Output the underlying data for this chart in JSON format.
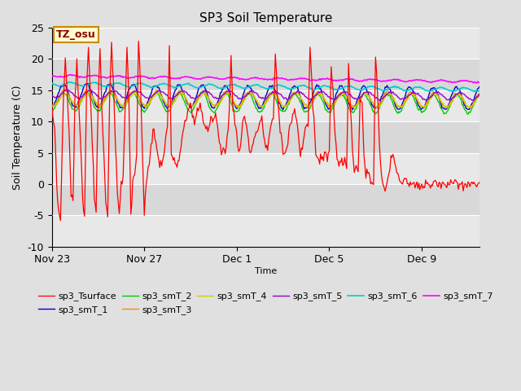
{
  "title": "SP3 Soil Temperature",
  "ylabel": "Soil Temperature (C)",
  "xlabel": "Time",
  "annotation": "TZ_osu",
  "ylim": [
    -10,
    25
  ],
  "xlim_days": 18.5,
  "bg_color": "#e0e0e0",
  "plot_bg_light": "#e8e8e8",
  "plot_bg_dark": "#d0d0d0",
  "series_colors": {
    "sp3_Tsurface": "#ff0000",
    "sp3_smT_1": "#0000cc",
    "sp3_smT_2": "#00cc00",
    "sp3_smT_3": "#ff8800",
    "sp3_smT_4": "#cccc00",
    "sp3_smT_5": "#9900cc",
    "sp3_smT_6": "#00cccc",
    "sp3_smT_7": "#ff00ff"
  },
  "xtick_labels": [
    "Nov 23",
    "Nov 27",
    "Dec 1",
    "Dec 5",
    "Dec 9"
  ],
  "xtick_days": [
    0,
    4,
    8,
    12,
    16
  ],
  "yticks": [
    -10,
    -5,
    0,
    5,
    10,
    15,
    20,
    25
  ],
  "legend_order": [
    "sp3_Tsurface",
    "sp3_smT_1",
    "sp3_smT_2",
    "sp3_smT_3",
    "sp3_smT_4",
    "sp3_smT_5",
    "sp3_smT_6",
    "sp3_smT_7"
  ]
}
